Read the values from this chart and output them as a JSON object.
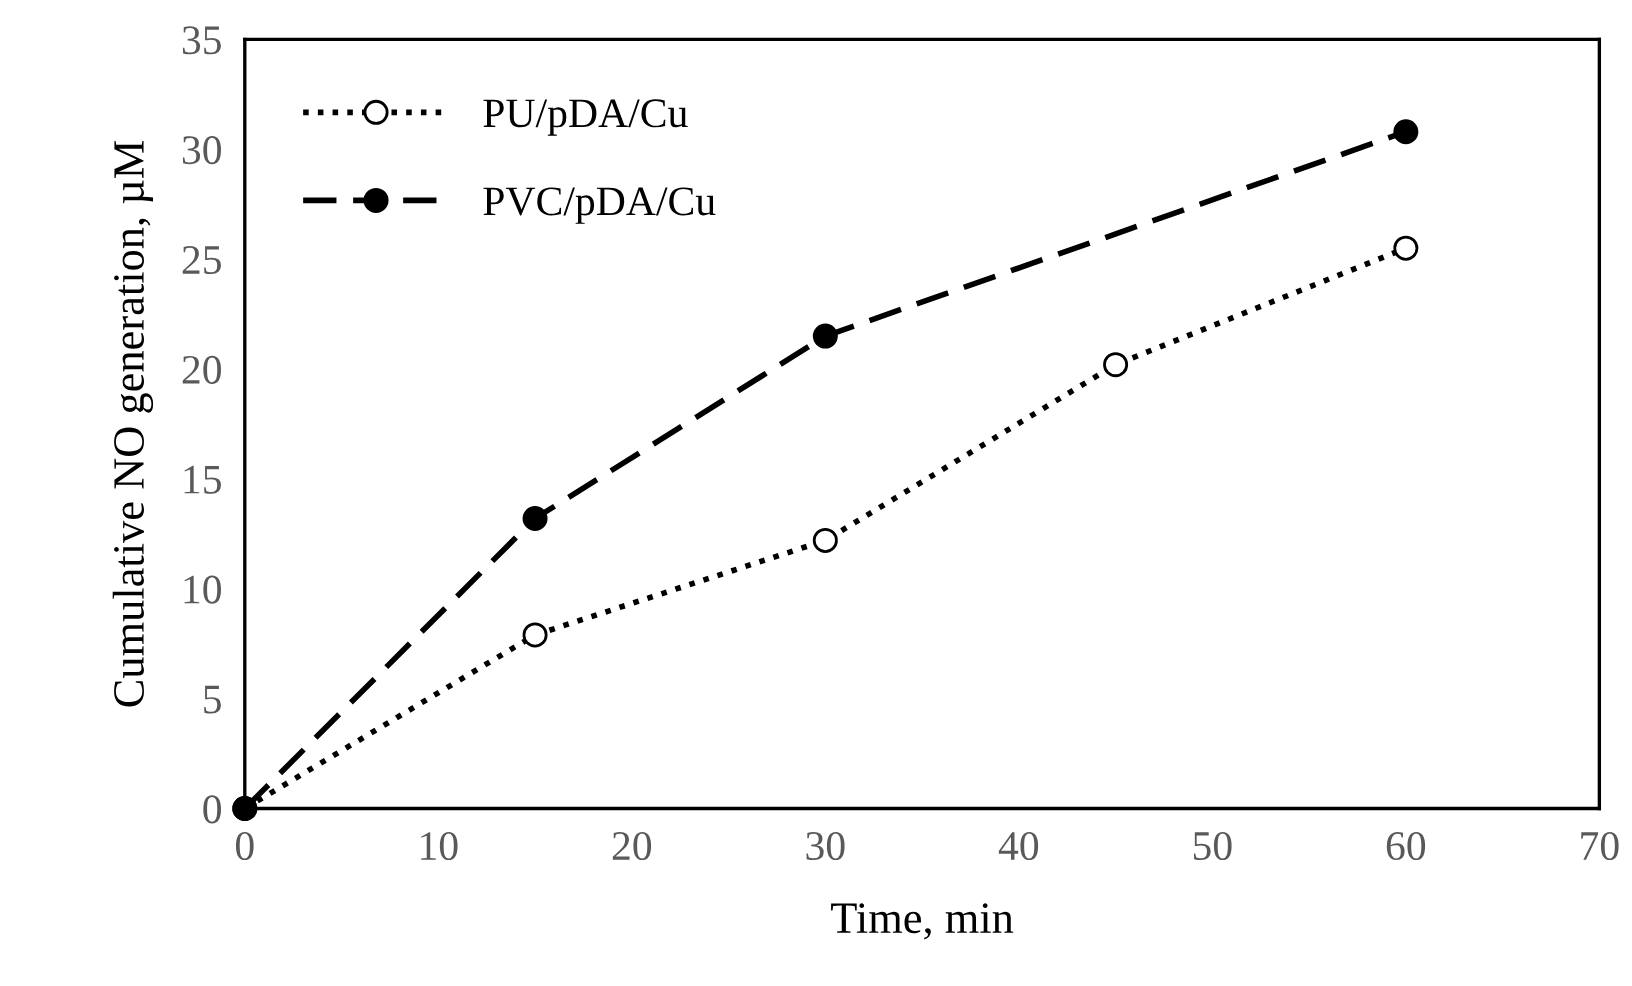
{
  "chart_data": {
    "type": "line",
    "xlabel": "Time, min",
    "ylabel": "Cumulative NO generation, µM",
    "xlim": [
      0,
      70
    ],
    "xticks": [
      0,
      10,
      20,
      30,
      40,
      50,
      60,
      70
    ],
    "ylim": [
      0,
      35
    ],
    "yticks": [
      0,
      5,
      10,
      15,
      20,
      25,
      30,
      35
    ],
    "grid": false,
    "legend": "top left",
    "series": [
      {
        "name": "PU/pDA/Cu",
        "color": "#000000",
        "x": [
          0,
          15,
          30,
          45,
          60
        ],
        "values": [
          0,
          7.9,
          12.2,
          20.2,
          25.5
        ],
        "line_style": "dotted",
        "marker": "open circle"
      },
      {
        "name": "PVC/pDA/Cu",
        "color": "#000000",
        "x": [
          0,
          15,
          30,
          60
        ],
        "values": [
          0,
          13.2,
          21.5,
          30.8
        ],
        "line_style": "dashed",
        "marker": "circle"
      }
    ]
  }
}
